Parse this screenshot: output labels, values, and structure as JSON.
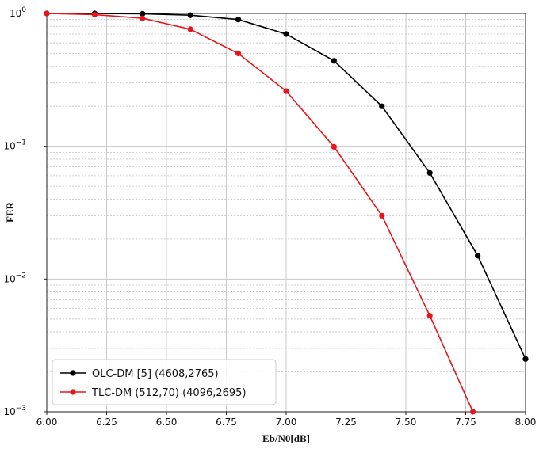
{
  "chart_data": {
    "type": "line",
    "title": "",
    "xlabel": "Eb/N0[dB]",
    "ylabel": "FER",
    "xlim": [
      6.0,
      8.0
    ],
    "ylim": [
      0.001,
      1.0
    ],
    "yscale": "log",
    "grid": true,
    "legend_position": "lower-left",
    "x_ticks": [
      "6.00",
      "6.25",
      "6.50",
      "6.75",
      "7.00",
      "7.25",
      "7.50",
      "7.75",
      "8.00"
    ],
    "y_ticks": [
      {
        "base": "10",
        "exp": "0"
      },
      {
        "base": "10",
        "exp": "−1"
      },
      {
        "base": "10",
        "exp": "−2"
      },
      {
        "base": "10",
        "exp": "−3"
      }
    ],
    "series": [
      {
        "name": "OLC-DM [5] (4608,2765)",
        "color": "#000000",
        "x": [
          6.0,
          6.2,
          6.4,
          6.6,
          6.8,
          7.0,
          7.2,
          7.4,
          7.6,
          7.8,
          8.0
        ],
        "y": [
          1.0,
          1.0,
          0.995,
          0.97,
          0.9,
          0.7,
          0.44,
          0.2,
          0.063,
          0.015,
          0.0025
        ]
      },
      {
        "name": "TLC-DM (512,70) (4096,2695)",
        "color": "#e8141b",
        "x": [
          6.0,
          6.2,
          6.4,
          6.6,
          6.8,
          7.0,
          7.2,
          7.4,
          7.6,
          7.78
        ],
        "y": [
          1.0,
          0.98,
          0.92,
          0.76,
          0.5,
          0.26,
          0.099,
          0.03,
          0.0053,
          0.001
        ]
      }
    ]
  }
}
